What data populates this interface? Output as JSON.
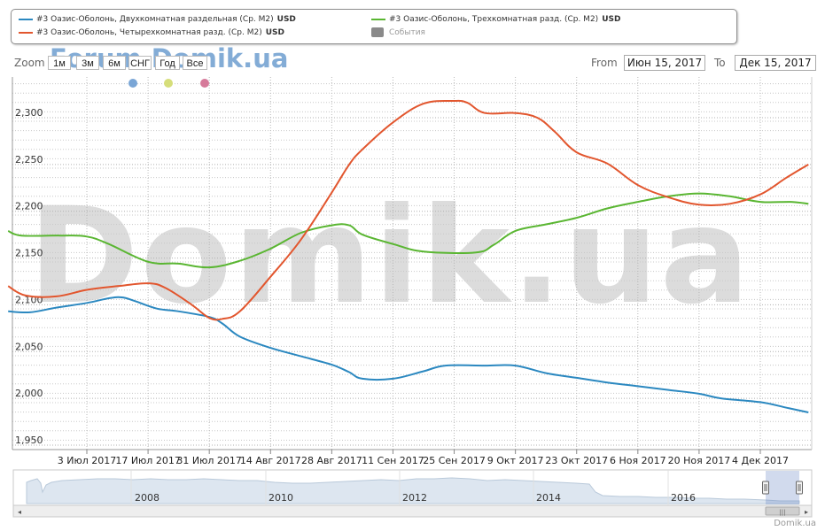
{
  "legend": {
    "items": [
      {
        "label": "#3 Оазис-Оболонь, Двухкомнатная раздельная (Ср. М2)",
        "unit": "USD",
        "color": "#2b88c0"
      },
      {
        "label": "#3 Оазис-Оболонь, Трехкомнатная разд. (Ср. М2)",
        "unit": "USD",
        "color": "#5ab632"
      },
      {
        "label": "#3 Оазис-Оболонь, Четырехкомнатная разд. (Ср. М2)",
        "unit": "USD",
        "color": "#e2562e"
      },
      {
        "label": "События",
        "color": "#8a8a8a"
      }
    ]
  },
  "range_selector": {
    "zoom_label": "Zoom",
    "buttons": [
      "1м",
      "3м",
      "6м",
      "СНГ",
      "Год",
      "Все"
    ],
    "from_label": "From",
    "from_value": "Июн 15, 2017",
    "to_label": "To",
    "to_value": "Дек 15, 2017"
  },
  "event_dot_colors": [
    "#7aa6d6",
    "#d6de7a",
    "#d67a9a"
  ],
  "watermark_text": "Domik.ua",
  "top_logo_text": "Forum.Domik.ua",
  "credit": "Domik.ua",
  "chart_data": {
    "type": "line",
    "x_axis": {
      "type": "date",
      "range": [
        "2017-06-15",
        "2017-12-15"
      ],
      "ticks": [
        {
          "date": "2017-07-03",
          "label": "3 Июл 2017"
        },
        {
          "date": "2017-07-17",
          "label": "17 Июл 2017"
        },
        {
          "date": "2017-07-31",
          "label": "31 Июл 2017"
        },
        {
          "date": "2017-08-14",
          "label": "14 Авг 2017"
        },
        {
          "date": "2017-08-28",
          "label": "28 Авг 2017"
        },
        {
          "date": "2017-09-11",
          "label": "11 Сен 2017"
        },
        {
          "date": "2017-09-25",
          "label": "25 Сен 2017"
        },
        {
          "date": "2017-10-09",
          "label": "9 Окт 2017"
        },
        {
          "date": "2017-10-23",
          "label": "23 Окт 2017"
        },
        {
          "date": "2017-11-06",
          "label": "6 Ноя 2017"
        },
        {
          "date": "2017-11-20",
          "label": "20 Ноя 2017"
        },
        {
          "date": "2017-12-04",
          "label": "4 Дек 2017"
        }
      ]
    },
    "y_axis": {
      "ylim": [
        1950,
        2350
      ],
      "ticks": [
        {
          "value": 1950,
          "label": "1,950"
        },
        {
          "value": 2000,
          "label": "2,000"
        },
        {
          "value": 2050,
          "label": "2,050"
        },
        {
          "value": 2100,
          "label": "2,100"
        },
        {
          "value": 2150,
          "label": "2,150"
        },
        {
          "value": 2200,
          "label": "2,200"
        },
        {
          "value": 2250,
          "label": "2,250"
        },
        {
          "value": 2300,
          "label": "2,300"
        }
      ]
    },
    "grid": true,
    "series": [
      {
        "name": "#3 Оазис-Оболонь, Двухкомнатная раздельная (Ср. М2)",
        "color": "#2b88c0",
        "points": [
          [
            "2017-06-15",
            2093
          ],
          [
            "2017-06-20",
            2092
          ],
          [
            "2017-06-26",
            2097
          ],
          [
            "2017-07-03",
            2102
          ],
          [
            "2017-07-08",
            2107
          ],
          [
            "2017-07-11",
            2108
          ],
          [
            "2017-07-14",
            2104
          ],
          [
            "2017-07-19",
            2096
          ],
          [
            "2017-07-24",
            2093
          ],
          [
            "2017-07-31",
            2087
          ],
          [
            "2017-08-03",
            2080
          ],
          [
            "2017-08-07",
            2066
          ],
          [
            "2017-08-14",
            2054
          ],
          [
            "2017-08-21",
            2045
          ],
          [
            "2017-08-28",
            2036
          ],
          [
            "2017-09-01",
            2028
          ],
          [
            "2017-09-04",
            2021
          ],
          [
            "2017-09-11",
            2021
          ],
          [
            "2017-09-18",
            2029
          ],
          [
            "2017-09-23",
            2035
          ],
          [
            "2017-10-02",
            2035
          ],
          [
            "2017-10-09",
            2035
          ],
          [
            "2017-10-16",
            2027
          ],
          [
            "2017-10-23",
            2022
          ],
          [
            "2017-10-30",
            2017
          ],
          [
            "2017-11-06",
            2013
          ],
          [
            "2017-11-13",
            2009
          ],
          [
            "2017-11-20",
            2005
          ],
          [
            "2017-11-25",
            2000
          ],
          [
            "2017-12-04",
            1996
          ],
          [
            "2017-12-10",
            1990
          ],
          [
            "2017-12-15",
            1985
          ]
        ]
      },
      {
        "name": "#3 Оазис-Оболонь, Трехкомнатная разд. (Ср. М2)",
        "color": "#5ab632",
        "points": [
          [
            "2017-06-15",
            2179
          ],
          [
            "2017-06-18",
            2174
          ],
          [
            "2017-06-27",
            2174
          ],
          [
            "2017-07-03",
            2173
          ],
          [
            "2017-07-08",
            2165
          ],
          [
            "2017-07-17",
            2146
          ],
          [
            "2017-07-24",
            2144
          ],
          [
            "2017-07-31",
            2140
          ],
          [
            "2017-08-07",
            2147
          ],
          [
            "2017-08-14",
            2160
          ],
          [
            "2017-08-21",
            2177
          ],
          [
            "2017-08-28",
            2185
          ],
          [
            "2017-09-01",
            2185
          ],
          [
            "2017-09-04",
            2175
          ],
          [
            "2017-09-11",
            2165
          ],
          [
            "2017-09-18",
            2157
          ],
          [
            "2017-09-30",
            2156
          ],
          [
            "2017-10-04",
            2164
          ],
          [
            "2017-10-09",
            2179
          ],
          [
            "2017-10-16",
            2186
          ],
          [
            "2017-10-23",
            2193
          ],
          [
            "2017-10-30",
            2203
          ],
          [
            "2017-11-06",
            2210
          ],
          [
            "2017-11-13",
            2216
          ],
          [
            "2017-11-20",
            2219
          ],
          [
            "2017-11-27",
            2216
          ],
          [
            "2017-12-04",
            2210
          ],
          [
            "2017-12-11",
            2210
          ],
          [
            "2017-12-15",
            2208
          ]
        ]
      },
      {
        "name": "#3 Оазис-Оболонь, Четырехкомнатная разд. (Ср. М2)",
        "color": "#e2562e",
        "points": [
          [
            "2017-06-15",
            2120
          ],
          [
            "2017-06-19",
            2110
          ],
          [
            "2017-06-26",
            2109
          ],
          [
            "2017-07-03",
            2116
          ],
          [
            "2017-07-10",
            2120
          ],
          [
            "2017-07-17",
            2123
          ],
          [
            "2017-07-21",
            2118
          ],
          [
            "2017-07-27",
            2100
          ],
          [
            "2017-07-31",
            2086
          ],
          [
            "2017-08-03",
            2085
          ],
          [
            "2017-08-07",
            2093
          ],
          [
            "2017-08-14",
            2130
          ],
          [
            "2017-08-21",
            2170
          ],
          [
            "2017-08-28",
            2220
          ],
          [
            "2017-09-01",
            2250
          ],
          [
            "2017-09-04",
            2266
          ],
          [
            "2017-09-11",
            2295
          ],
          [
            "2017-09-18",
            2315
          ],
          [
            "2017-09-25",
            2318
          ],
          [
            "2017-09-28",
            2316
          ],
          [
            "2017-10-02",
            2305
          ],
          [
            "2017-10-09",
            2305
          ],
          [
            "2017-10-14",
            2300
          ],
          [
            "2017-10-18",
            2285
          ],
          [
            "2017-10-23",
            2263
          ],
          [
            "2017-10-30",
            2251
          ],
          [
            "2017-11-06",
            2228
          ],
          [
            "2017-11-13",
            2215
          ],
          [
            "2017-11-20",
            2207
          ],
          [
            "2017-11-27",
            2208
          ],
          [
            "2017-12-04",
            2218
          ],
          [
            "2017-12-10",
            2236
          ],
          [
            "2017-12-15",
            2250
          ]
        ]
      }
    ]
  },
  "navigator": {
    "year_labels": [
      "2008",
      "2010",
      "2012",
      "2014",
      "2016"
    ]
  }
}
